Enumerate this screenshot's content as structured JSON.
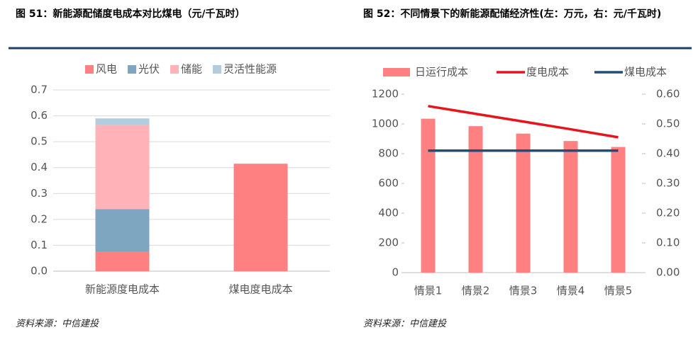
{
  "chart_data": [
    {
      "type": "bar",
      "stacked": true,
      "title": "图 51：新能源配储度电成本对比煤电（元/千瓦时）",
      "categories": [
        "新能源度电成本",
        "煤电度电成本"
      ],
      "series": [
        {
          "name": "风电",
          "color": "#ff8080",
          "values": [
            0.075,
            0.415
          ]
        },
        {
          "name": "光伏",
          "color": "#7fa6c0",
          "values": [
            0.165,
            null
          ]
        },
        {
          "name": "储能",
          "color": "#ffb3b9",
          "values": [
            0.325,
            null
          ]
        },
        {
          "name": "灵活性能源",
          "color": "#b3cde0",
          "values": [
            0.025,
            null
          ]
        }
      ],
      "ylim": [
        0,
        0.7
      ],
      "yticks": [
        {
          "value": 0,
          "label": "0.0"
        },
        0.1,
        0.2,
        0.3,
        0.4,
        0.5,
        0.6,
        0.7
      ],
      "grid": true,
      "legend": "top",
      "source": "资料来源：中信建投"
    },
    {
      "type": "combo",
      "title": "图 52：不同情景下的新能源配储经济性(左：万元，右：元/千瓦时)",
      "categories": [
        "情景1",
        "情景2",
        "情景3",
        "情景4",
        "情景5"
      ],
      "series": [
        {
          "name": "日运行成本",
          "type": "bar",
          "color": "#ff8080",
          "values": [
            1035,
            985,
            935,
            885,
            845
          ]
        },
        {
          "name": "度电成本",
          "type": "line",
          "axis": "y2",
          "color": "#e8141c",
          "values": [
            0.56,
            0.534,
            0.508,
            0.482,
            0.455
          ]
        },
        {
          "name": "煤电成本",
          "type": "line",
          "axis": "y2",
          "color": "#1f4e79",
          "values": [
            0.41,
            0.41,
            0.41,
            0.41,
            0.41
          ]
        }
      ],
      "ylim": [
        0,
        1200
      ],
      "yticks": [
        0,
        200,
        400,
        600,
        800,
        1000,
        1200
      ],
      "y2lim": [
        0,
        0.6
      ],
      "y2ticks": [
        {
          "value": 0,
          "label": "0.00"
        },
        {
          "value": 0.1,
          "label": "0.10"
        },
        {
          "value": 0.2,
          "label": "0.20"
        },
        {
          "value": 0.3,
          "label": "0.30"
        },
        {
          "value": 0.4,
          "label": "0.40"
        },
        {
          "value": 0.5,
          "label": "0.50"
        },
        {
          "value": 0.6,
          "label": "0.60"
        }
      ],
      "grid": false,
      "legend": "top",
      "source": "资料来源：中信建投"
    }
  ]
}
